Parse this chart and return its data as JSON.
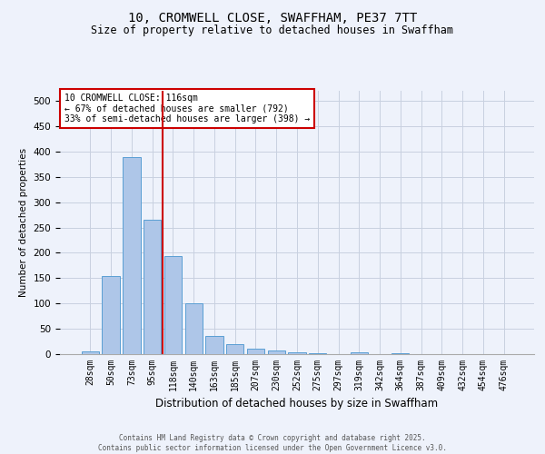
{
  "title1": "10, CROMWELL CLOSE, SWAFFHAM, PE37 7TT",
  "title2": "Size of property relative to detached houses in Swaffham",
  "xlabel": "Distribution of detached houses by size in Swaffham",
  "ylabel": "Number of detached properties",
  "bar_labels": [
    "28sqm",
    "50sqm",
    "73sqm",
    "95sqm",
    "118sqm",
    "140sqm",
    "163sqm",
    "185sqm",
    "207sqm",
    "230sqm",
    "252sqm",
    "275sqm",
    "297sqm",
    "319sqm",
    "342sqm",
    "364sqm",
    "387sqm",
    "409sqm",
    "432sqm",
    "454sqm",
    "476sqm"
  ],
  "bar_values": [
    5,
    155,
    390,
    265,
    193,
    101,
    35,
    20,
    10,
    8,
    3,
    2,
    0,
    3,
    0,
    2,
    0,
    0,
    0,
    0,
    0
  ],
  "bar_color": "#aec6e8",
  "bar_edge_color": "#5a9fd4",
  "vline_x_index": 4,
  "vline_color": "#cc0000",
  "annotation_text": "10 CROMWELL CLOSE: 116sqm\n← 67% of detached houses are smaller (792)\n33% of semi-detached houses are larger (398) →",
  "annotation_box_color": "#ffffff",
  "annotation_box_edge_color": "#cc0000",
  "ylim": [
    0,
    520
  ],
  "yticks": [
    0,
    50,
    100,
    150,
    200,
    250,
    300,
    350,
    400,
    450,
    500
  ],
  "footer1": "Contains HM Land Registry data © Crown copyright and database right 2025.",
  "footer2": "Contains public sector information licensed under the Open Government Licence v3.0.",
  "bg_color": "#eef2fb",
  "grid_color": "#c8d0e0"
}
